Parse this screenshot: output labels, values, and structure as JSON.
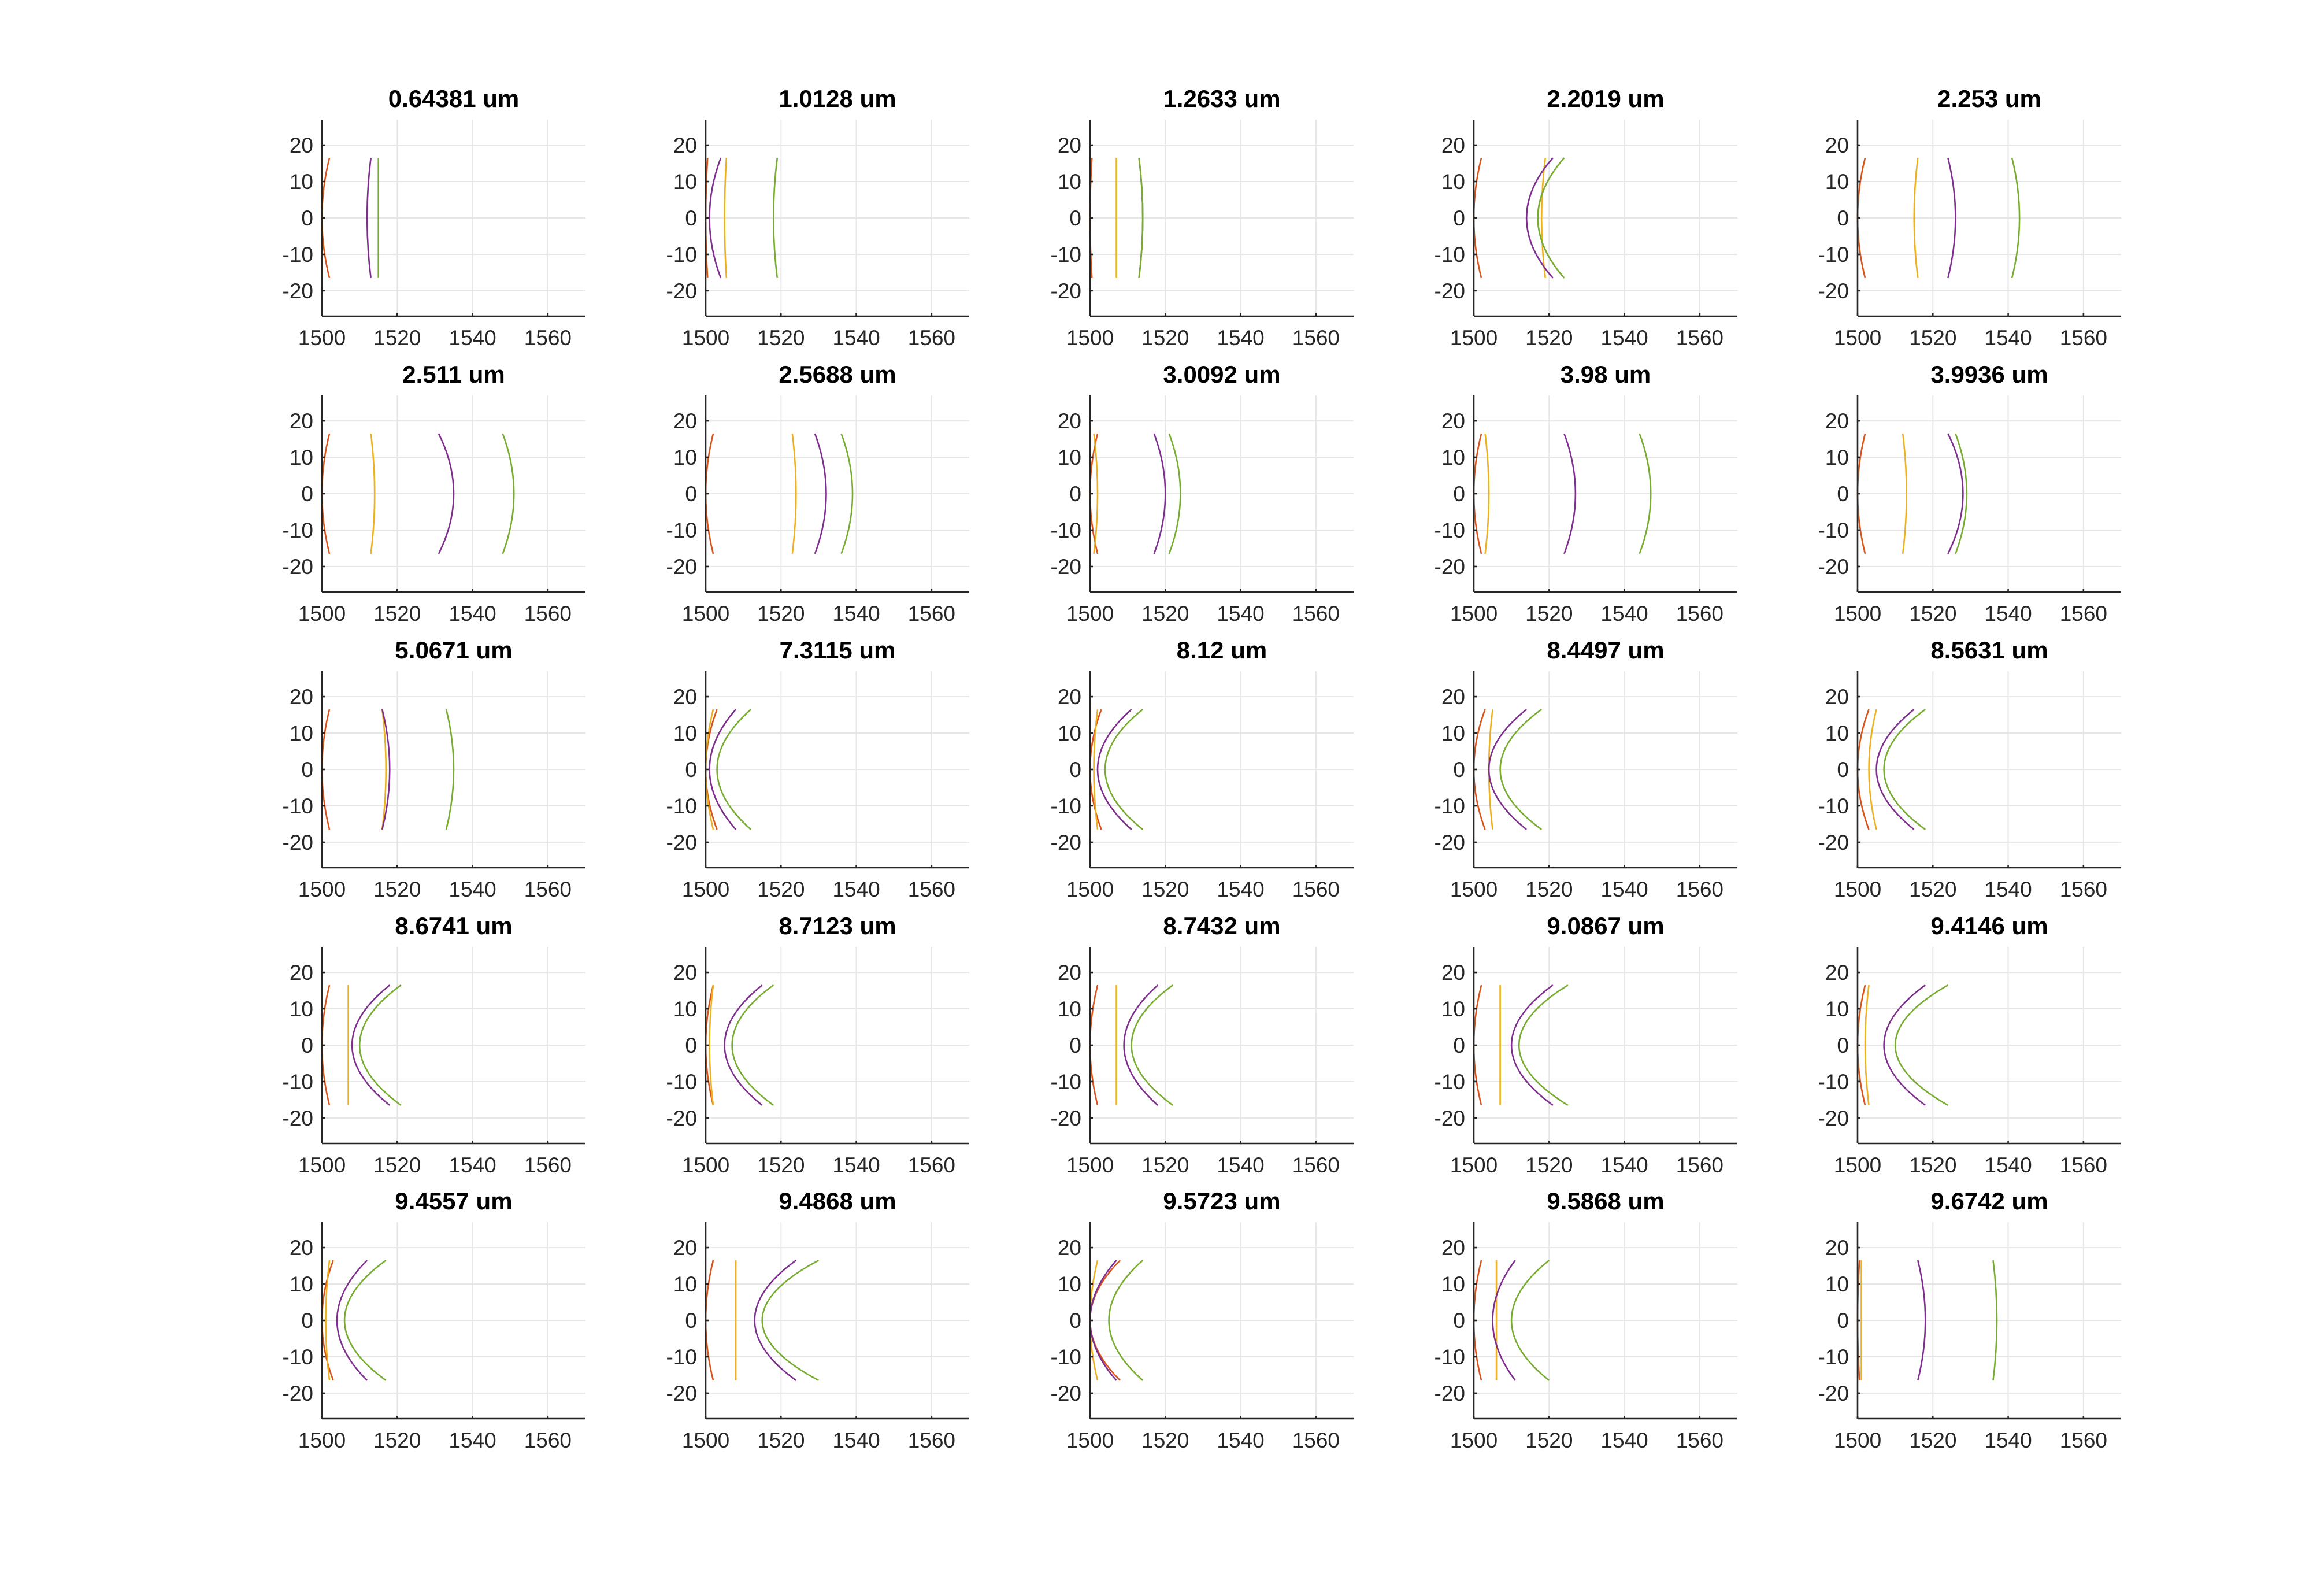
{
  "chart_data": {
    "type": "line",
    "description_units": {
      "x": "position",
      "y": "aperture height",
      "title_units": "um"
    },
    "grid": true,
    "xlim": [
      1500,
      1570
    ],
    "ylim": [
      -27,
      27
    ],
    "xticks": [
      1500,
      1520,
      1540,
      1560
    ],
    "yticks": [
      20,
      10,
      0,
      -10,
      -20
    ],
    "xtick_labels": [
      "1500",
      "1520",
      "1540",
      "1560"
    ],
    "ytick_labels": [
      "20",
      "10",
      "0",
      "-10",
      "-20"
    ],
    "aperture": 16.5,
    "colors": {
      "red": "#d95319",
      "orange": "#edb120",
      "purple": "#7e2f8e",
      "green": "#77ac30"
    },
    "series_order": [
      "red",
      "orange",
      "purple",
      "green"
    ],
    "series_note": "Each curve is an arc: vertex x at y=0, edge x at y=±aperture",
    "panels": [
      {
        "title": "0.64381 um",
        "curves": [
          {
            "vertex": 1500,
            "edge": 1502
          },
          {
            "vertex": 1500,
            "edge": 1500
          },
          {
            "vertex": 1512,
            "edge": 1513
          },
          {
            "vertex": 1515,
            "edge": 1515
          }
        ]
      },
      {
        "title": "1.0128 um",
        "curves": [
          {
            "vertex": 1500,
            "edge": 1500.5
          },
          {
            "vertex": 1505,
            "edge": 1505.5
          },
          {
            "vertex": 1501,
            "edge": 1504
          },
          {
            "vertex": 1518,
            "edge": 1519
          }
        ]
      },
      {
        "title": "1.2633 um",
        "curves": [
          {
            "vertex": 1500,
            "edge": 1500.5
          },
          {
            "vertex": 1507,
            "edge": 1507
          },
          {
            "vertex": 1514,
            "edge": 1513
          },
          {
            "vertex": 1514,
            "edge": 1513
          }
        ]
      },
      {
        "title": "2.2019 um",
        "curves": [
          {
            "vertex": 1500,
            "edge": 1502
          },
          {
            "vertex": 1518,
            "edge": 1519
          },
          {
            "vertex": 1514,
            "edge": 1521
          },
          {
            "vertex": 1517,
            "edge": 1524
          }
        ]
      },
      {
        "title": "2.253 um",
        "curves": [
          {
            "vertex": 1500,
            "edge": 1502
          },
          {
            "vertex": 1515,
            "edge": 1516
          },
          {
            "vertex": 1526,
            "edge": 1524
          },
          {
            "vertex": 1543,
            "edge": 1541
          }
        ]
      },
      {
        "title": "2.511 um",
        "curves": [
          {
            "vertex": 1500,
            "edge": 1502
          },
          {
            "vertex": 1514,
            "edge": 1513
          },
          {
            "vertex": 1535,
            "edge": 1531
          },
          {
            "vertex": 1551,
            "edge": 1548
          }
        ]
      },
      {
        "title": "2.5688 um",
        "curves": [
          {
            "vertex": 1500,
            "edge": 1502
          },
          {
            "vertex": 1524,
            "edge": 1523
          },
          {
            "vertex": 1532,
            "edge": 1529
          },
          {
            "vertex": 1539,
            "edge": 1536
          }
        ]
      },
      {
        "title": "3.0092 um",
        "curves": [
          {
            "vertex": 1500,
            "edge": 1502
          },
          {
            "vertex": 1502,
            "edge": 1501
          },
          {
            "vertex": 1520,
            "edge": 1517
          },
          {
            "vertex": 1524,
            "edge": 1521
          }
        ]
      },
      {
        "title": "3.98 um",
        "curves": [
          {
            "vertex": 1500,
            "edge": 1502
          },
          {
            "vertex": 1504,
            "edge": 1503
          },
          {
            "vertex": 1527,
            "edge": 1524
          },
          {
            "vertex": 1547,
            "edge": 1544
          }
        ]
      },
      {
        "title": "3.9936 um",
        "curves": [
          {
            "vertex": 1500,
            "edge": 1502
          },
          {
            "vertex": 1513,
            "edge": 1512
          },
          {
            "vertex": 1528,
            "edge": 1524
          },
          {
            "vertex": 1529,
            "edge": 1526
          }
        ]
      },
      {
        "title": "5.0671 um",
        "curves": [
          {
            "vertex": 1500,
            "edge": 1502
          },
          {
            "vertex": 1517,
            "edge": 1516
          },
          {
            "vertex": 1518,
            "edge": 1516
          },
          {
            "vertex": 1535,
            "edge": 1533
          }
        ]
      },
      {
        "title": "7.3115 um",
        "curves": [
          {
            "vertex": 1500,
            "edge": 1503
          },
          {
            "vertex": 1500,
            "edge": 1502
          },
          {
            "vertex": 1501,
            "edge": 1508
          },
          {
            "vertex": 1503,
            "edge": 1512
          }
        ]
      },
      {
        "title": "8.12 um",
        "curves": [
          {
            "vertex": 1500,
            "edge": 1503
          },
          {
            "vertex": 1501,
            "edge": 1502
          },
          {
            "vertex": 1502,
            "edge": 1511
          },
          {
            "vertex": 1504,
            "edge": 1514
          }
        ]
      },
      {
        "title": "8.4497 um",
        "curves": [
          {
            "vertex": 1500,
            "edge": 1503
          },
          {
            "vertex": 1504,
            "edge": 1505
          },
          {
            "vertex": 1504,
            "edge": 1514
          },
          {
            "vertex": 1507,
            "edge": 1518
          }
        ]
      },
      {
        "title": "8.5631 um",
        "curves": [
          {
            "vertex": 1500,
            "edge": 1503
          },
          {
            "vertex": 1503,
            "edge": 1505
          },
          {
            "vertex": 1505,
            "edge": 1515
          },
          {
            "vertex": 1507,
            "edge": 1518
          }
        ]
      },
      {
        "title": "8.6741 um",
        "curves": [
          {
            "vertex": 1500,
            "edge": 1502
          },
          {
            "vertex": 1507,
            "edge": 1507
          },
          {
            "vertex": 1508,
            "edge": 1518
          },
          {
            "vertex": 1510,
            "edge": 1521
          }
        ]
      },
      {
        "title": "8.7123 um",
        "curves": [
          {
            "vertex": 1500,
            "edge": 1502
          },
          {
            "vertex": 1501,
            "edge": 1502
          },
          {
            "vertex": 1505,
            "edge": 1515
          },
          {
            "vertex": 1507,
            "edge": 1518
          }
        ]
      },
      {
        "title": "8.7432 um",
        "curves": [
          {
            "vertex": 1500,
            "edge": 1502
          },
          {
            "vertex": 1507,
            "edge": 1507
          },
          {
            "vertex": 1509,
            "edge": 1518
          },
          {
            "vertex": 1511,
            "edge": 1522
          }
        ]
      },
      {
        "title": "9.0867 um",
        "curves": [
          {
            "vertex": 1500,
            "edge": 1502
          },
          {
            "vertex": 1507,
            "edge": 1507
          },
          {
            "vertex": 1510,
            "edge": 1521
          },
          {
            "vertex": 1512,
            "edge": 1525
          }
        ]
      },
      {
        "title": "9.4146 um",
        "curves": [
          {
            "vertex": 1500,
            "edge": 1502
          },
          {
            "vertex": 1502,
            "edge": 1503
          },
          {
            "vertex": 1507,
            "edge": 1518
          },
          {
            "vertex": 1510,
            "edge": 1524
          }
        ]
      },
      {
        "title": "9.4557 um",
        "curves": [
          {
            "vertex": 1500,
            "edge": 1503
          },
          {
            "vertex": 1501,
            "edge": 1502
          },
          {
            "vertex": 1504,
            "edge": 1512
          },
          {
            "vertex": 1506,
            "edge": 1517
          }
        ]
      },
      {
        "title": "9.4868 um",
        "curves": [
          {
            "vertex": 1500,
            "edge": 1502
          },
          {
            "vertex": 1508,
            "edge": 1508
          },
          {
            "vertex": 1513,
            "edge": 1524
          },
          {
            "vertex": 1515,
            "edge": 1530
          }
        ]
      },
      {
        "title": "9.5723 um",
        "curves": [
          {
            "vertex": 1500,
            "edge": 1508
          },
          {
            "vertex": 1500,
            "edge": 1502
          },
          {
            "vertex": 1500,
            "edge": 1507
          },
          {
            "vertex": 1505,
            "edge": 1514
          }
        ]
      },
      {
        "title": "9.5868 um",
        "curves": [
          {
            "vertex": 1500,
            "edge": 1502
          },
          {
            "vertex": 1506,
            "edge": 1506
          },
          {
            "vertex": 1505,
            "edge": 1511
          },
          {
            "vertex": 1510,
            "edge": 1520
          }
        ]
      },
      {
        "title": "9.6742 um",
        "curves": [
          {
            "vertex": 1500,
            "edge": 1500.5
          },
          {
            "vertex": 1501,
            "edge": 1501
          },
          {
            "vertex": 1518,
            "edge": 1516
          },
          {
            "vertex": 1537,
            "edge": 1536
          }
        ]
      }
    ]
  }
}
